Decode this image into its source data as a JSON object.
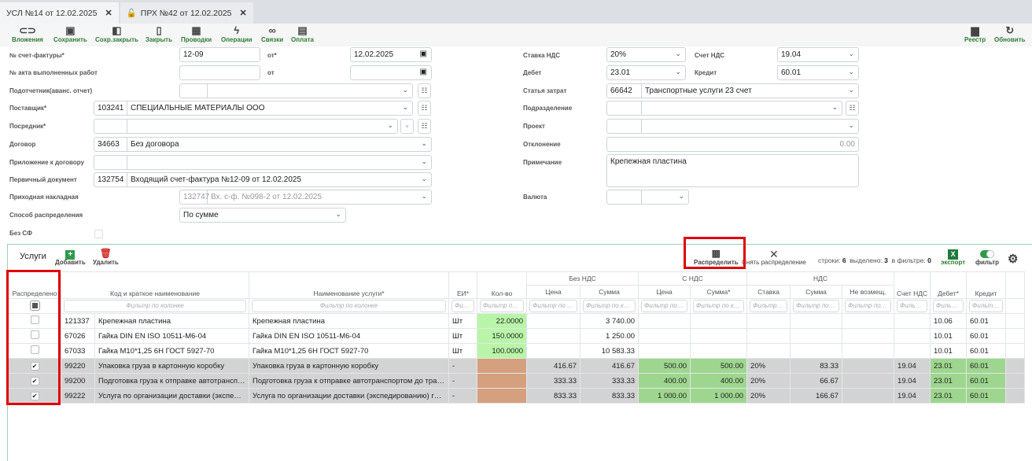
{
  "tabs": [
    {
      "label": "УСЛ №14 от 12.02.2025",
      "active": true
    },
    {
      "label": "ПРХ №42 от 12.02.2025",
      "active": false
    }
  ],
  "toolbar": {
    "attachments": "Вложения",
    "save": "Сохранить",
    "save_close": "Сохр.закрыть",
    "close": "Закрыть",
    "postings": "Проводки",
    "operations": "Операции",
    "links": "Связки",
    "payment": "Оплата",
    "registry": "Реестр",
    "refresh": "Обновить"
  },
  "form": {
    "invoice_no_label": "№ счет-фактуры*",
    "invoice_no": "12-09",
    "invoice_date_label": "от*",
    "invoice_date": "12.02.2025",
    "act_no_label": "№ акта выполненных работ",
    "act_date_label": "от",
    "accountable_label": "Подотчетник(аванс. отчет)",
    "supplier_label": "Поставщик*",
    "supplier_code": "103241",
    "supplier_name": "СПЕЦИАЛЬНЫЕ МАТЕРИАЛЫ ООО",
    "intermediary_label": "Посредник*",
    "contract_label": "Договор",
    "contract_code": "34663",
    "contract_name": "Без договора",
    "appendix_label": "Приложение к договору",
    "primary_doc_label": "Первичный документ",
    "primary_doc_code": "132754",
    "primary_doc_name": "Входящий счет-фактура №12-09 от 12.02.2025",
    "receipt_label": "Приходная накладная",
    "receipt_code": "132747",
    "receipt_name": "Вх. с-ф. №098-2 от 12.02.2025",
    "distribution_label": "Способ распределения",
    "distribution": "По сумме",
    "no_invoice_label": "Без СФ",
    "vat_rate_label": "Ставка НДС",
    "vat_rate": "20%",
    "vat_account_label": "Счет НДС",
    "vat_account": "19.04",
    "debit_label": "Дебет",
    "debit": "23.01",
    "credit_label": "Кредит",
    "credit": "60.01",
    "cost_item_label": "Статья затрат",
    "cost_item_code": "66642",
    "cost_item_name": "Транспортные услуги 23 счет",
    "division_label": "Подразделение",
    "project_label": "Проект",
    "deviation_label": "Отклонение",
    "deviation": "0.00",
    "note_label": "Примечание",
    "note": "Крепежная пластина",
    "currency_label": "Валюта"
  },
  "services": {
    "title": "Услуги",
    "add": "Добавить",
    "delete": "Удалить",
    "distribute": "Распределить",
    "undistribute": "Снять распределение",
    "rows_label": "строки:",
    "rows": "6",
    "selected_label": "выделено:",
    "selected": "3",
    "filtered_label": "в фильтре:",
    "filtered": "0",
    "export": "экспорт",
    "filter": "фильтр",
    "group_headers": {
      "no_vat": "Без НДС",
      "with_vat": "С НДС",
      "vat": "НДС"
    },
    "columns": [
      "Распределено",
      "Код и краткое наименование",
      "Наименование услуги*",
      "ЕИ*",
      "Кол-во",
      "Цена",
      "Сумма",
      "Цена",
      "Сумма*",
      "Ставка",
      "Сумма",
      "Не возмещ.",
      "Счет НДС",
      "Дебет*",
      "Кредит"
    ],
    "filter_placeholder": "Фильтр по колонке",
    "rows_data": [
      {
        "checked": false,
        "code": "121337",
        "short": "Крепежная пластина",
        "name": "Крепежная пластина",
        "unit": "Шт",
        "qty": "22.0000",
        "price": "",
        "sum": "3 740.00",
        "price_vat": "",
        "sum_vat": "",
        "rate": "",
        "vat": "",
        "nonrec": "",
        "vat_acc": "",
        "debit": "10.06",
        "credit": "60.01"
      },
      {
        "checked": false,
        "code": "67026",
        "short": "Гайка DIN EN ISO 10511-M6-04",
        "name": "Гайка DIN EN ISO 10511-M6-04",
        "unit": "Шт",
        "qty": "150.0000",
        "price": "",
        "sum": "1 250.00",
        "price_vat": "",
        "sum_vat": "",
        "rate": "",
        "vat": "",
        "nonrec": "",
        "vat_acc": "",
        "debit": "10.01",
        "credit": "60.01"
      },
      {
        "checked": false,
        "code": "67033",
        "short": "Гайка М10*1,25 6Н ГОСТ 5927-70",
        "name": "Гайка М10*1,25 6Н ГОСТ 5927-70",
        "unit": "Шт",
        "qty": "100.0000",
        "price": "",
        "sum": "10 583.33",
        "price_vat": "",
        "sum_vat": "",
        "rate": "",
        "vat": "",
        "nonrec": "",
        "vat_acc": "",
        "debit": "10.01",
        "credit": "60.01"
      },
      {
        "checked": true,
        "code": "99220",
        "short": "Упаковка груза в картонную коробку",
        "name": "Упаковка груза в картонную коробку",
        "unit": "-",
        "qty": "",
        "price": "416.67",
        "sum": "416.67",
        "price_vat": "500.00",
        "sum_vat": "500.00",
        "rate": "20%",
        "vat": "83.33",
        "nonrec": "",
        "vat_acc": "19.04",
        "debit": "23.01",
        "credit": "60.01"
      },
      {
        "checked": true,
        "code": "99200",
        "short": "Подготовка груза к отправке автотранспо...",
        "name": "Подготовка груза к отправке автотранспортом до тран...",
        "unit": "-",
        "qty": "",
        "price": "333.33",
        "sum": "333.33",
        "price_vat": "400.00",
        "sum_vat": "400.00",
        "rate": "20%",
        "vat": "66.67",
        "nonrec": "",
        "vat_acc": "19.04",
        "debit": "23.01",
        "credit": "60.01"
      },
      {
        "checked": true,
        "code": "99222",
        "short": "Услуга по организации доставки (экспеди...",
        "name": "Услуга по организации доставки (экспедированию) груза",
        "unit": "-",
        "qty": "",
        "price": "833.33",
        "sum": "833.33",
        "price_vat": "1 000.00",
        "sum_vat": "1 000.00",
        "rate": "20%",
        "vat": "166.67",
        "nonrec": "",
        "vat_acc": "19.04",
        "debit": "23.01",
        "credit": "60.01"
      }
    ]
  },
  "colors": {
    "accent": "#2e7d32",
    "highlight": "#e00000",
    "qty_green": "#b9f5a8",
    "qty_orange": "#d4a07e",
    "cell_green": "#9ed68f",
    "row_gray": "#d3d3d3"
  }
}
